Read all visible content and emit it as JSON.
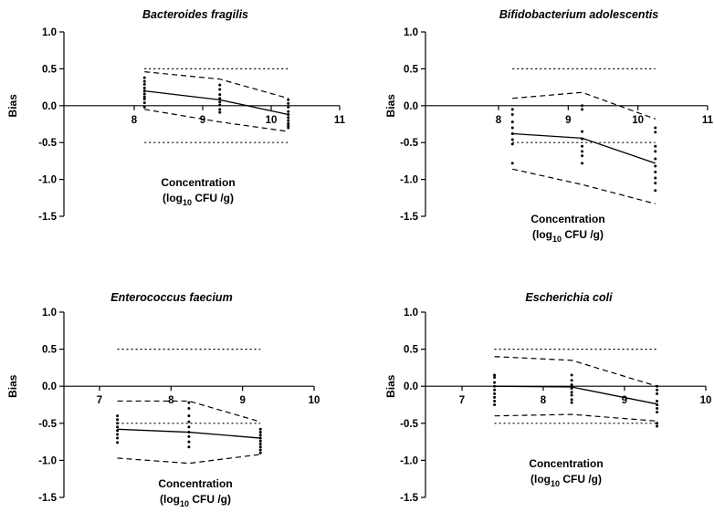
{
  "chart_data": [
    {
      "type": "scatter",
      "title": "Bacteroides fragilis",
      "ylabel": "Bias",
      "xlabel_line1": "Concentration",
      "xlabel_prefix": "(log",
      "xlabel_sub": "10",
      "xlabel_suffix": " CFU /g)",
      "xlim": [
        7.5,
        11
      ],
      "ylim": [
        -1.5,
        1.0
      ],
      "xticks": [
        "8",
        "9",
        "10",
        "11"
      ],
      "xtick_values": [
        8,
        9,
        10,
        11
      ],
      "yticks": [
        "1.0",
        "0.5",
        "0.0",
        "-0.5",
        "-1.0",
        "-1.5"
      ],
      "ytick_values": [
        1.0,
        0.5,
        0.0,
        -0.5,
        -1.0,
        -1.5
      ],
      "reference_limits": {
        "x": [
          8.15,
          10.25
        ],
        "upper": 0.5,
        "lower": -0.5
      },
      "series": [
        {
          "x": [
            8.15,
            9.25,
            10.25
          ],
          "values": [
            0.2,
            0.08,
            -0.12
          ]
        },
        {
          "x": [
            8.15,
            9.25,
            10.25
          ],
          "values": [
            0.46,
            0.36,
            0.1
          ]
        },
        {
          "x": [
            8.15,
            9.25,
            10.25
          ],
          "values": [
            -0.05,
            -0.22,
            -0.35
          ]
        }
      ],
      "points": [
        {
          "x": 8.15,
          "y": [
            0.38,
            0.33,
            0.29,
            0.24,
            0.2,
            0.16,
            0.12,
            0.09,
            0.04,
            -0.02
          ]
        },
        {
          "x": 9.25,
          "y": [
            0.28,
            0.22,
            0.15,
            0.1,
            0.05,
            0.01,
            -0.05,
            -0.09
          ]
        },
        {
          "x": 10.25,
          "y": [
            0.08,
            0.03,
            -0.02,
            -0.08,
            -0.12,
            -0.16,
            -0.2,
            -0.24,
            -0.27,
            -0.3
          ]
        }
      ]
    },
    {
      "type": "scatter",
      "title": "Bifidobacterium adolescentis",
      "ylabel": "Bias",
      "xlabel_line1": "Concentration",
      "xlabel_prefix": "(log",
      "xlabel_sub": "10",
      "xlabel_suffix": " CFU /g)",
      "xlim": [
        7.5,
        11
      ],
      "ylim": [
        -1.5,
        1.0
      ],
      "xticks": [
        "8",
        "9",
        "10",
        "11"
      ],
      "xtick_values": [
        8,
        9,
        10,
        11
      ],
      "yticks": [
        "1.0",
        "0.5",
        "0.0",
        "-0.5",
        "-1.0",
        "-1.5"
      ],
      "ytick_values": [
        1.0,
        0.5,
        0.0,
        -0.5,
        -1.0,
        -1.5
      ],
      "reference_limits": {
        "x": [
          8.2,
          10.25
        ],
        "upper": 0.5,
        "lower": -0.5
      },
      "series": [
        {
          "x": [
            8.2,
            9.2,
            10.25
          ],
          "values": [
            -0.38,
            -0.44,
            -0.78
          ]
        },
        {
          "x": [
            8.2,
            9.2,
            10.25
          ],
          "values": [
            0.1,
            0.18,
            -0.18
          ]
        },
        {
          "x": [
            8.2,
            9.2,
            10.25
          ],
          "values": [
            -0.86,
            -1.07,
            -1.33
          ]
        }
      ],
      "points": [
        {
          "x": 8.2,
          "y": [
            -0.05,
            -0.12,
            -0.22,
            -0.3,
            -0.38,
            -0.46,
            -0.52,
            -0.78
          ]
        },
        {
          "x": 9.2,
          "y": [
            0.0,
            -0.05,
            -0.35,
            -0.45,
            -0.55,
            -0.62,
            -0.68,
            -0.78
          ]
        },
        {
          "x": 10.25,
          "y": [
            -0.3,
            -0.36,
            -0.55,
            -0.62,
            -0.72,
            -0.82,
            -0.9,
            -0.98,
            -1.05,
            -1.15
          ]
        }
      ]
    },
    {
      "type": "scatter",
      "title": "Enterococcus faecium",
      "ylabel": "Bias",
      "xlabel_line1": "Concentration",
      "xlabel_prefix": "(log",
      "xlabel_sub": "10",
      "xlabel_suffix": " CFU /g)",
      "xlim": [
        6,
        10
      ],
      "ylim": [
        -1.5,
        1.0
      ],
      "xticks": [
        "7",
        "8",
        "9",
        "10"
      ],
      "xtick_values": [
        7,
        8,
        9,
        10
      ],
      "yticks": [
        "1.0",
        "0.5",
        "0.0",
        "-0.5",
        "-1.0",
        "-1.5"
      ],
      "ytick_values": [
        1.0,
        0.5,
        0.0,
        -0.5,
        -1.0,
        -1.5
      ],
      "reference_limits": {
        "x": [
          7.25,
          9.25
        ],
        "upper": 0.5,
        "lower": -0.5
      },
      "series": [
        {
          "x": [
            7.25,
            8.25,
            9.25
          ],
          "values": [
            -0.58,
            -0.62,
            -0.7
          ]
        },
        {
          "x": [
            7.25,
            8.25,
            9.25
          ],
          "values": [
            -0.2,
            -0.2,
            -0.48
          ]
        },
        {
          "x": [
            7.25,
            8.25,
            9.25
          ],
          "values": [
            -0.97,
            -1.04,
            -0.92
          ]
        }
      ],
      "points": [
        {
          "x": 7.25,
          "y": [
            -0.4,
            -0.45,
            -0.5,
            -0.55,
            -0.6,
            -0.65,
            -0.7,
            -0.76
          ]
        },
        {
          "x": 8.25,
          "y": [
            -0.22,
            -0.3,
            -0.4,
            -0.48,
            -0.55,
            -0.62,
            -0.68,
            -0.75,
            -0.82
          ]
        },
        {
          "x": 9.25,
          "y": [
            -0.58,
            -0.62,
            -0.66,
            -0.7,
            -0.74,
            -0.78,
            -0.82,
            -0.86,
            -0.9
          ]
        }
      ]
    },
    {
      "type": "scatter",
      "title": "Escherichia coli",
      "ylabel": "Bias",
      "xlabel_line1": "Concentration",
      "xlabel_prefix": "(log",
      "xlabel_sub": "10",
      "xlabel_suffix": " CFU /g)",
      "xlim": [
        6,
        10
      ],
      "ylim": [
        -1.5,
        1.0
      ],
      "xticks": [
        "7",
        "8",
        "9",
        "10"
      ],
      "xtick_values": [
        7,
        8,
        9,
        10
      ],
      "yticks": [
        "1.0",
        "0.5",
        "0.0",
        "-0.5",
        "-1.0",
        "-1.5"
      ],
      "ytick_values": [
        1.0,
        0.5,
        0.0,
        -0.5,
        -1.0,
        -1.5
      ],
      "reference_limits": {
        "x": [
          7.4,
          9.4
        ],
        "upper": 0.5,
        "lower": -0.5
      },
      "series": [
        {
          "x": [
            7.4,
            8.35,
            9.4
          ],
          "values": [
            0.0,
            -0.01,
            -0.24
          ]
        },
        {
          "x": [
            7.4,
            8.35,
            9.4
          ],
          "values": [
            0.4,
            0.35,
            0.0
          ]
        },
        {
          "x": [
            7.4,
            8.35,
            9.4
          ],
          "values": [
            -0.4,
            -0.38,
            -0.47
          ]
        }
      ],
      "points": [
        {
          "x": 7.4,
          "y": [
            0.15,
            0.12,
            0.05,
            0.0,
            -0.05,
            -0.1,
            -0.15,
            -0.2,
            -0.25
          ]
        },
        {
          "x": 8.35,
          "y": [
            0.15,
            0.08,
            0.02,
            -0.03,
            -0.08,
            -0.12,
            -0.18,
            -0.22
          ]
        },
        {
          "x": 9.4,
          "y": [
            0.0,
            -0.05,
            -0.1,
            -0.2,
            -0.25,
            -0.3,
            -0.35,
            -0.5,
            -0.54
          ]
        }
      ]
    }
  ]
}
